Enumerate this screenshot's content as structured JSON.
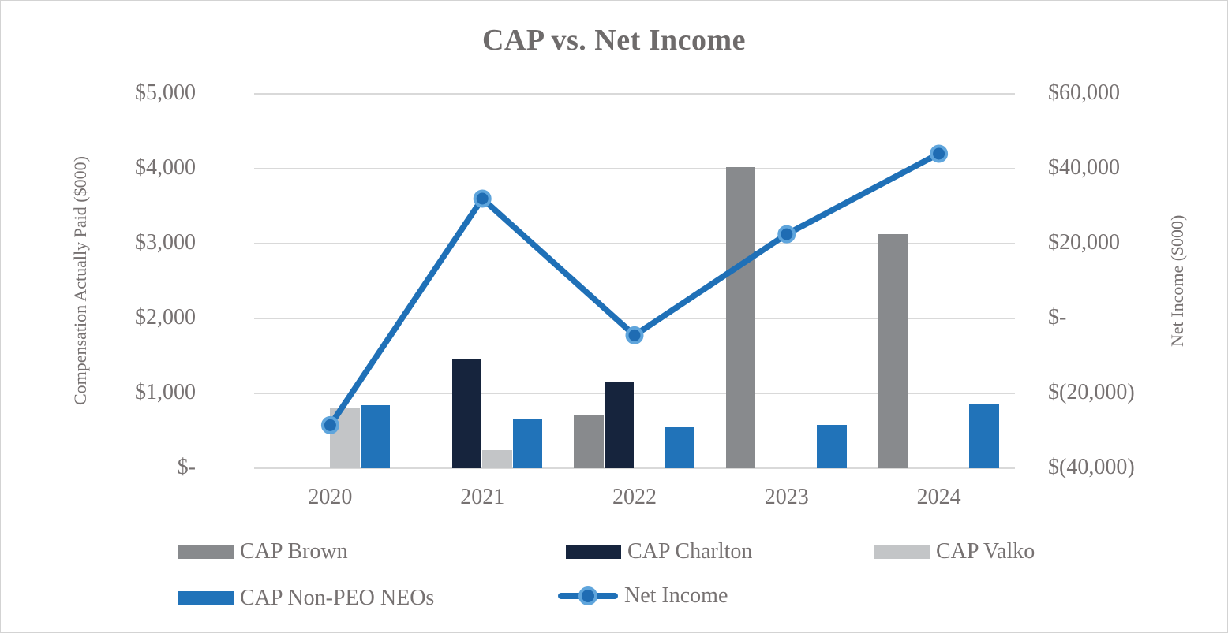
{
  "chart_data": {
    "type": "combo-bar-line",
    "title": "CAP vs. Net Income",
    "categories": [
      "2020",
      "2021",
      "2022",
      "2023",
      "2024"
    ],
    "series": [
      {
        "name": "CAP Brown",
        "type": "bar",
        "axis": "left",
        "color": "#888a8d",
        "values": [
          null,
          null,
          720,
          4020,
          3130
        ]
      },
      {
        "name": "CAP Charlton",
        "type": "bar",
        "axis": "left",
        "color": "#16243d",
        "values": [
          null,
          1450,
          1150,
          null,
          null
        ]
      },
      {
        "name": "CAP Valko",
        "type": "bar",
        "axis": "left",
        "color": "#c3c5c7",
        "values": [
          800,
          240,
          null,
          null,
          null
        ]
      },
      {
        "name": "CAP Non-PEO NEOs",
        "type": "bar",
        "axis": "left",
        "color": "#2173b9",
        "values": [
          840,
          650,
          550,
          575,
          850
        ]
      },
      {
        "name": "Net Income",
        "type": "line",
        "axis": "right",
        "color": "#1f70b7",
        "marker_fill": "#1f6cb3",
        "marker_ring": "#5fa5dc",
        "values": [
          -28500,
          32000,
          -4500,
          22500,
          44000
        ]
      }
    ],
    "left_axis": {
      "title": "Compensation Actually Paid ($000)",
      "ticks": [
        "$5,000",
        "$4,000",
        "$3,000",
        "$2,000",
        "$1,000",
        "$-"
      ],
      "min": 0,
      "max": 5000
    },
    "right_axis": {
      "title": "Net Income ($000)",
      "ticks": [
        "$60,000",
        "$40,000",
        "$20,000",
        "$-",
        "$(20,000)",
        "$(40,000)"
      ],
      "min": -40000,
      "max": 60000
    },
    "x_axis": {
      "ticks": [
        "2020",
        "2021",
        "2022",
        "2023",
        "2024"
      ]
    },
    "grid": true,
    "legend_position": "bottom"
  }
}
